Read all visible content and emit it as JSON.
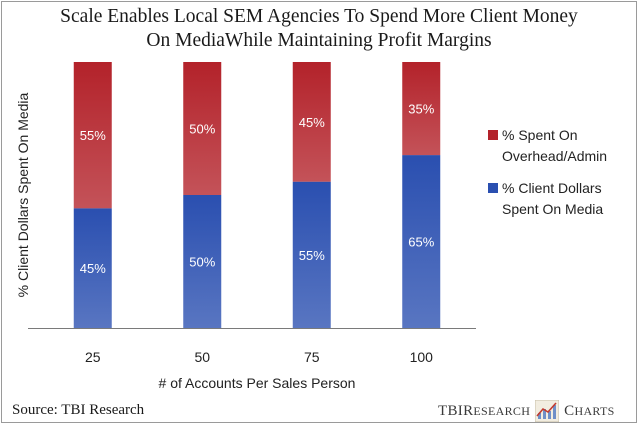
{
  "chart_data": {
    "type": "bar",
    "stacked": true,
    "title_lines": [
      "Scale Enables Local SEM Agencies To Spend More Client Money",
      "On MediaWhile Maintaining Profit Margins"
    ],
    "xlabel": "# of Accounts Per Sales Person",
    "ylabel": "% Client Dollars Spent On Media",
    "categories": [
      "25",
      "50",
      "75",
      "100"
    ],
    "ylim": [
      0,
      100
    ],
    "series": [
      {
        "name": "% Client Dollars Spent On Media",
        "legend_lines": [
          "% Client Dollars",
          "Spent On Media"
        ],
        "color": "#2a4fb0",
        "values": [
          45,
          50,
          55,
          65
        ],
        "labels": [
          "45%",
          "50%",
          "55%",
          "65%"
        ]
      },
      {
        "name": "% Spent On Overhead/Admin",
        "legend_lines": [
          "% Spent On",
          "Overhead/Admin"
        ],
        "color": "#b3222a",
        "values": [
          55,
          50,
          45,
          35
        ],
        "labels": [
          "55%",
          "50%",
          "45%",
          "35%"
        ]
      }
    ],
    "legend": "right",
    "grid": false
  },
  "source": "Source: TBI Research",
  "logo": {
    "tbi": "TBI",
    "research_r": "R",
    "research_rest": "ESEARCH",
    "charts_c": "C",
    "charts_rest": "HARTS",
    "icon": "chart-line-icon"
  }
}
